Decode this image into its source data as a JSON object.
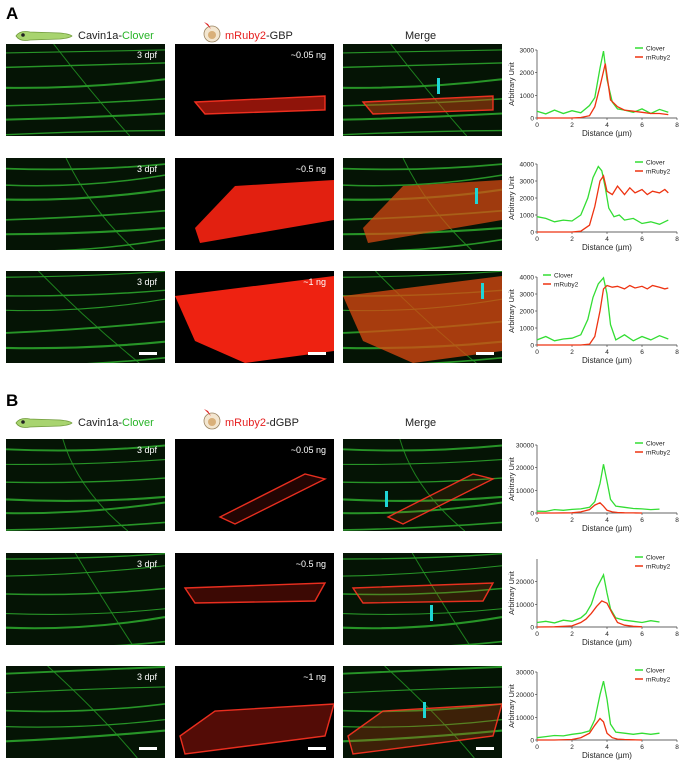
{
  "panels": [
    {
      "letter": "A",
      "col1": {
        "prefix": "Cavin1a-",
        "suffix": "Clover"
      },
      "col2": {
        "prefix": "mRuby2",
        "suffix": "-GBP"
      },
      "col3": "Merge",
      "rows": [
        {
          "stage": "3 dpf",
          "dose": "~0.05 ng"
        },
        {
          "stage": "3 dpf",
          "dose": "~0.5 ng"
        },
        {
          "stage": "3 dpf",
          "dose": "~1 ng"
        }
      ]
    },
    {
      "letter": "B",
      "col1": {
        "prefix": "Cavin1a-",
        "suffix": "Clover"
      },
      "col2": {
        "prefix": "mRuby2",
        "suffix": "-dGBP"
      },
      "col3": "Merge",
      "rows": [
        {
          "stage": "3 dpf",
          "dose": "~0.05 ng"
        },
        {
          "stage": "3 dpf",
          "dose": "~0.5 ng"
        },
        {
          "stage": "3 dpf",
          "dose": "~1 ng"
        }
      ]
    }
  ],
  "colors": {
    "clover": "#33dd33",
    "mruby": "#ee3311",
    "marker": "#1fd6d6"
  },
  "chart_data": [
    {
      "type": "line",
      "xlabel": "Distance (µm)",
      "ylabel": "Arbitrary Unit",
      "xlim": [
        0,
        8
      ],
      "ylim": [
        0,
        3000
      ],
      "xticks": [
        0,
        2,
        4,
        6,
        8
      ],
      "yticks": [
        0,
        1000,
        2000,
        3000
      ],
      "legend": "top-right",
      "series": [
        {
          "name": "Clover",
          "x": [
            0,
            0.5,
            1,
            1.5,
            2,
            2.5,
            3,
            3.3,
            3.6,
            3.8,
            4.0,
            4.3,
            4.6,
            5,
            5.5,
            6,
            6.5,
            7,
            7.5
          ],
          "values": [
            300,
            180,
            350,
            200,
            320,
            230,
            550,
            900,
            2200,
            2950,
            1700,
            700,
            400,
            350,
            250,
            400,
            200,
            380,
            250
          ]
        },
        {
          "name": "mRuby2",
          "x": [
            0,
            1,
            2,
            2.5,
            3,
            3.3,
            3.6,
            3.9,
            4.2,
            4.6,
            5,
            5.5,
            6,
            6.5,
            7,
            7.5
          ],
          "values": [
            0,
            0,
            0,
            20,
            100,
            500,
            1400,
            2400,
            800,
            500,
            350,
            300,
            250,
            200,
            200,
            150
          ]
        }
      ]
    },
    {
      "type": "line",
      "xlabel": "Distance (µm)",
      "ylabel": "Arbitrary Unit",
      "xlim": [
        0,
        8
      ],
      "ylim": [
        0,
        4000
      ],
      "xticks": [
        0,
        2,
        4,
        6,
        8
      ],
      "yticks": [
        0,
        1000,
        2000,
        3000,
        4000
      ],
      "legend": "top-right",
      "series": [
        {
          "name": "Clover",
          "x": [
            0,
            0.5,
            1,
            1.5,
            2,
            2.5,
            2.9,
            3.2,
            3.5,
            3.7,
            3.9,
            4.1,
            4.4,
            4.7,
            5,
            5.5,
            6,
            6.5,
            7,
            7.5
          ],
          "values": [
            900,
            800,
            600,
            700,
            650,
            1000,
            2000,
            3200,
            3850,
            3600,
            2600,
            1400,
            900,
            1000,
            700,
            800,
            500,
            600,
            450,
            700
          ]
        },
        {
          "name": "mRuby2",
          "x": [
            0,
            1,
            2,
            2.5,
            3,
            3.3,
            3.6,
            3.8,
            4.0,
            4.3,
            4.6,
            5,
            5.3,
            5.6,
            6,
            6.3,
            6.6,
            7,
            7.3,
            7.5
          ],
          "values": [
            0,
            0,
            0,
            50,
            400,
            1500,
            3000,
            3300,
            2400,
            2200,
            2700,
            2200,
            2600,
            2300,
            2500,
            2200,
            2400,
            2300,
            2500,
            2300
          ]
        }
      ]
    },
    {
      "type": "line",
      "xlabel": "Distance (µm)",
      "ylabel": "Arbitrary Unit",
      "xlim": [
        0,
        8
      ],
      "ylim": [
        0,
        4000
      ],
      "xticks": [
        0,
        2,
        4,
        6,
        8
      ],
      "yticks": [
        0,
        1000,
        2000,
        3000,
        4000
      ],
      "legend": "top-left",
      "series": [
        {
          "name": "Clover",
          "x": [
            0,
            0.5,
            1,
            1.5,
            2,
            2.5,
            2.9,
            3.2,
            3.5,
            3.8,
            4.0,
            4.2,
            4.5,
            5,
            5.5,
            6,
            6.5,
            7,
            7.5
          ],
          "values": [
            300,
            500,
            250,
            350,
            400,
            600,
            1500,
            2800,
            3600,
            3950,
            3000,
            1200,
            300,
            600,
            250,
            500,
            300,
            550,
            350
          ]
        },
        {
          "name": "mRuby2",
          "x": [
            0,
            1,
            2,
            2.5,
            3,
            3.3,
            3.6,
            3.8,
            4.0,
            4.3,
            4.6,
            5,
            5.3,
            5.6,
            6,
            6.3,
            6.6,
            7,
            7.3,
            7.5
          ],
          "values": [
            0,
            0,
            0,
            0,
            50,
            500,
            2000,
            3300,
            3500,
            3400,
            3450,
            3300,
            3500,
            3350,
            3450,
            3300,
            3500,
            3400,
            3300,
            3350
          ]
        }
      ]
    },
    {
      "type": "line",
      "xlabel": "Distance (µm)",
      "ylabel": "Arbitrary Unit",
      "xlim": [
        0,
        8
      ],
      "ylim": [
        0,
        30000
      ],
      "xticks": [
        0,
        2,
        4,
        6,
        8
      ],
      "yticks": [
        0,
        10000,
        20000,
        30000
      ],
      "legend": "top-right",
      "series": [
        {
          "name": "Clover",
          "x": [
            0,
            0.5,
            1,
            1.5,
            2,
            2.5,
            3,
            3.3,
            3.6,
            3.8,
            4.0,
            4.2,
            4.5,
            5,
            5.5,
            6,
            6.5,
            7
          ],
          "values": [
            800,
            700,
            1500,
            1200,
            1600,
            1800,
            2500,
            5000,
            13000,
            21500,
            14000,
            6000,
            3000,
            2500,
            2000,
            1800,
            1500,
            1700
          ]
        },
        {
          "name": "mRuby2",
          "x": [
            0,
            1,
            2,
            2.5,
            3,
            3.3,
            3.6,
            3.8,
            4.0,
            4.3,
            4.6,
            5,
            5.5,
            6
          ],
          "values": [
            0,
            0,
            100,
            500,
            1500,
            3500,
            4500,
            3000,
            1200,
            500,
            200,
            100,
            50,
            0
          ]
        }
      ]
    },
    {
      "type": "line",
      "xlabel": "Distance (µm)",
      "ylabel": "Arbitrary Unit",
      "xlim": [
        0,
        8
      ],
      "ylim": [
        0,
        30000
      ],
      "xticks": [
        0,
        2,
        4,
        6,
        8
      ],
      "yticks": [
        0,
        10000,
        20000
      ],
      "legend": "top-right",
      "series": [
        {
          "name": "Clover",
          "x": [
            0,
            0.5,
            1,
            1.5,
            2,
            2.5,
            2.8,
            3.1,
            3.4,
            3.6,
            3.8,
            4.0,
            4.2,
            4.5,
            5,
            5.5,
            6,
            6.5,
            7
          ],
          "values": [
            2000,
            2500,
            1800,
            3000,
            2500,
            4000,
            6000,
            10000,
            17000,
            20000,
            23000,
            15000,
            8000,
            4000,
            3000,
            2500,
            2000,
            2800,
            2200
          ]
        },
        {
          "name": "mRuby2",
          "x": [
            0,
            1,
            2,
            2.5,
            2.8,
            3.1,
            3.4,
            3.7,
            4.0,
            4.3,
            4.6,
            5,
            5.5,
            6
          ],
          "values": [
            0,
            100,
            500,
            2000,
            3500,
            6000,
            9000,
            11500,
            10500,
            6000,
            2000,
            800,
            300,
            100
          ]
        }
      ]
    },
    {
      "type": "line",
      "xlabel": "Distance (µm)",
      "ylabel": "Arbitrary Unit",
      "xlim": [
        0,
        8
      ],
      "ylim": [
        0,
        30000
      ],
      "xticks": [
        0,
        2,
        4,
        6,
        8
      ],
      "yticks": [
        0,
        10000,
        20000,
        30000
      ],
      "legend": "top-right",
      "series": [
        {
          "name": "Clover",
          "x": [
            0,
            0.5,
            1,
            1.5,
            2,
            2.5,
            3,
            3.3,
            3.6,
            3.8,
            4.0,
            4.2,
            4.5,
            5,
            5.5,
            6,
            6.5,
            7
          ],
          "values": [
            1000,
            1500,
            2000,
            1800,
            2500,
            3000,
            4000,
            9000,
            20000,
            26000,
            18000,
            7000,
            3500,
            3000,
            2500,
            3000,
            2500,
            3000
          ]
        },
        {
          "name": "mRuby2",
          "x": [
            0,
            1,
            2,
            2.5,
            3,
            3.3,
            3.6,
            3.8,
            4.0,
            4.3,
            4.6,
            5,
            5.5,
            6
          ],
          "values": [
            0,
            0,
            200,
            1000,
            3000,
            6500,
            9500,
            8000,
            3000,
            1000,
            400,
            200,
            100,
            0
          ]
        }
      ]
    }
  ]
}
